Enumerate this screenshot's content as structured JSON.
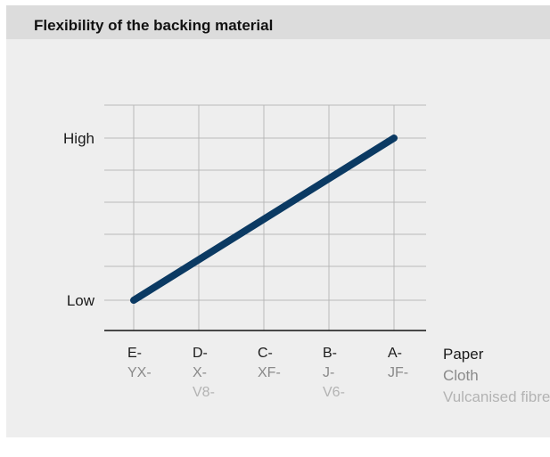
{
  "title": "Flexibility of the backing material",
  "colors": {
    "background": "#eeeeee",
    "header": "#dcdcdc",
    "line": "#0b3a63",
    "grid": "#b9b9b9",
    "paper": "#1a1a1a",
    "cloth": "#8a8a8a",
    "fibre": "#b3b3b3"
  },
  "legend": [
    "Paper",
    "Cloth",
    "Vulcanised fibre"
  ],
  "chart_data": {
    "type": "line",
    "title": "Flexibility of the backing material",
    "categories": [
      {
        "paper": "E-",
        "cloth": "YX-",
        "fibre": ""
      },
      {
        "paper": "D-",
        "cloth": "X-",
        "fibre": "V8-"
      },
      {
        "paper": "C-",
        "cloth": "XF-",
        "fibre": ""
      },
      {
        "paper": "B-",
        "cloth": "J-",
        "fibre": "V6-"
      },
      {
        "paper": "A-",
        "cloth": "JF-",
        "fibre": ""
      }
    ],
    "y_ticks": [
      "Low",
      "High"
    ],
    "ylim": [
      0,
      1
    ],
    "values": [
      0,
      0.25,
      0.5,
      0.75,
      1
    ],
    "grid": true
  }
}
